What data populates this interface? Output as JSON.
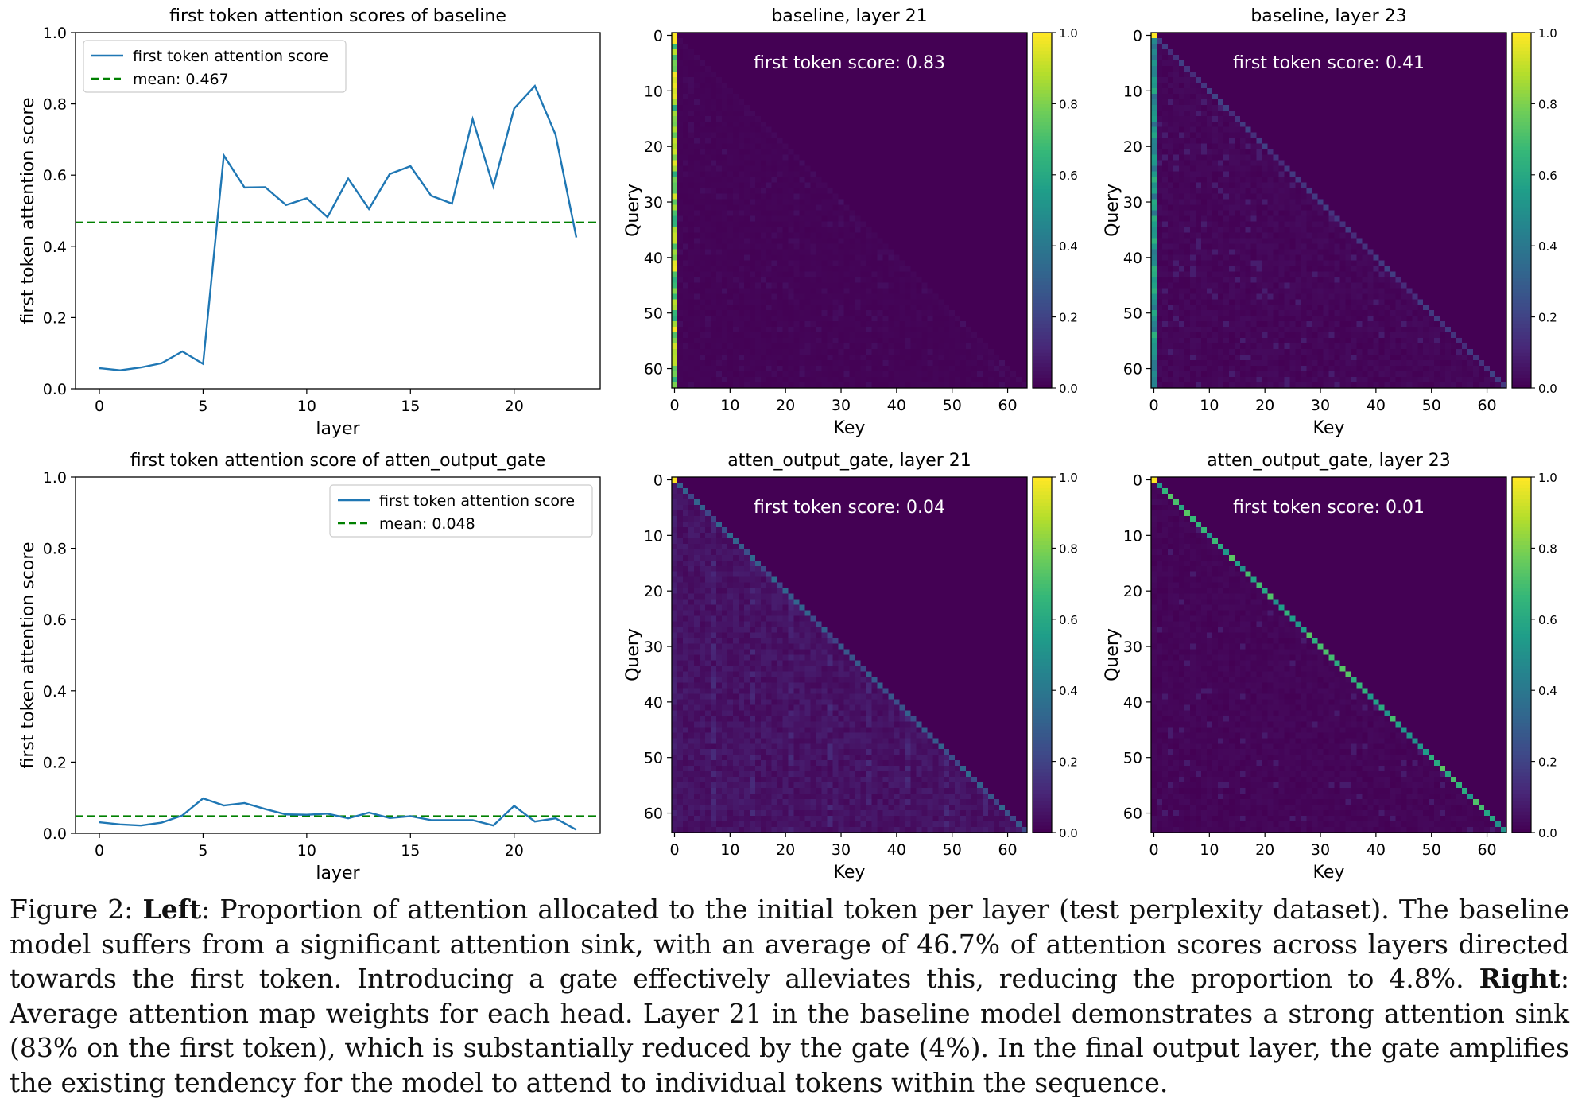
{
  "chart_data": [
    {
      "type": "line",
      "title": "first token attention scores of baseline",
      "xlabel": "layer",
      "ylabel": "first token attention score",
      "xlim": [
        -1.15,
        24.15
      ],
      "ylim": [
        0,
        1.0
      ],
      "xticks": [
        "0",
        "5",
        "10",
        "15",
        "20"
      ],
      "yticks": [
        "0.0",
        "0.2",
        "0.4",
        "0.6",
        "0.8",
        "1.0"
      ],
      "legend_position": "upper-left",
      "x": [
        0,
        1,
        2,
        3,
        4,
        5,
        6,
        7,
        8,
        9,
        10,
        11,
        12,
        13,
        14,
        15,
        16,
        17,
        18,
        19,
        20,
        21,
        22,
        23
      ],
      "series": [
        {
          "name": "first token attention score",
          "color": "#1f77b4",
          "values": [
            0.058,
            0.052,
            0.06,
            0.072,
            0.105,
            0.07,
            0.655,
            0.565,
            0.566,
            0.516,
            0.535,
            0.482,
            0.59,
            0.505,
            0.603,
            0.625,
            0.542,
            0.52,
            0.757,
            0.568,
            0.787,
            0.85,
            0.713,
            0.425
          ]
        },
        {
          "name": "mean: 0.467",
          "color": "#008000",
          "style": "dashed",
          "constant": 0.467
        }
      ]
    },
    {
      "type": "heatmap",
      "title": "baseline, layer 21",
      "xlabel": "Key",
      "ylabel": "Query",
      "annotation": "first token score: 0.83",
      "first_token_score": 0.83,
      "pattern": "strong sink on key 0",
      "xticks": [
        "0",
        "10",
        "20",
        "30",
        "40",
        "50",
        "60"
      ],
      "yticks": [
        "0",
        "10",
        "20",
        "30",
        "40",
        "50",
        "60"
      ],
      "colorbar_ticks": [
        "0.0",
        "0.2",
        "0.4",
        "0.6",
        "0.8",
        "1.0"
      ],
      "colormap": "viridis",
      "vmin": 0,
      "vmax": 1
    },
    {
      "type": "heatmap",
      "title": "baseline, layer 23",
      "xlabel": "Key",
      "ylabel": "Query",
      "annotation": "first token score: 0.41",
      "first_token_score": 0.41,
      "pattern": "moderate sink and faint diagonal",
      "xticks": [
        "0",
        "10",
        "20",
        "30",
        "40",
        "50",
        "60"
      ],
      "yticks": [
        "0",
        "10",
        "20",
        "30",
        "40",
        "50",
        "60"
      ],
      "colorbar_ticks": [
        "0.0",
        "0.2",
        "0.4",
        "0.6",
        "0.8",
        "1.0"
      ],
      "colormap": "viridis",
      "vmin": 0,
      "vmax": 1
    },
    {
      "type": "line",
      "title": "first token attention score of atten_output_gate",
      "xlabel": "layer",
      "ylabel": "first token attention score",
      "xlim": [
        -1.15,
        24.15
      ],
      "ylim": [
        0,
        1.0
      ],
      "xticks": [
        "0",
        "5",
        "10",
        "15",
        "20"
      ],
      "yticks": [
        "0.0",
        "0.2",
        "0.4",
        "0.6",
        "0.8",
        "1.0"
      ],
      "legend_position": "upper-right",
      "x": [
        0,
        1,
        2,
        3,
        4,
        5,
        6,
        7,
        8,
        9,
        10,
        11,
        12,
        13,
        14,
        15,
        16,
        17,
        18,
        19,
        20,
        21,
        22,
        23
      ],
      "series": [
        {
          "name": "first token attention score",
          "color": "#1f77b4",
          "values": [
            0.031,
            0.025,
            0.022,
            0.03,
            0.05,
            0.098,
            0.078,
            0.085,
            0.068,
            0.053,
            0.052,
            0.055,
            0.042,
            0.058,
            0.043,
            0.048,
            0.037,
            0.037,
            0.037,
            0.022,
            0.077,
            0.033,
            0.042,
            0.01
          ]
        },
        {
          "name": "mean: 0.048",
          "color": "#008000",
          "style": "dashed",
          "constant": 0.048
        }
      ]
    },
    {
      "type": "heatmap",
      "title": "atten_output_gate, layer 21",
      "xlabel": "Key",
      "ylabel": "Query",
      "annotation": "first token score: 0.04",
      "first_token_score": 0.04,
      "pattern": "diffuse lower triangle",
      "xticks": [
        "0",
        "10",
        "20",
        "30",
        "40",
        "50",
        "60"
      ],
      "yticks": [
        "0",
        "10",
        "20",
        "30",
        "40",
        "50",
        "60"
      ],
      "colorbar_ticks": [
        "0.0",
        "0.2",
        "0.4",
        "0.6",
        "0.8",
        "1.0"
      ],
      "colormap": "viridis",
      "vmin": 0,
      "vmax": 1
    },
    {
      "type": "heatmap",
      "title": "atten_output_gate, layer 23",
      "xlabel": "Key",
      "ylabel": "Query",
      "annotation": "first token score: 0.01",
      "first_token_score": 0.01,
      "pattern": "strong diagonal",
      "xticks": [
        "0",
        "10",
        "20",
        "30",
        "40",
        "50",
        "60"
      ],
      "yticks": [
        "0",
        "10",
        "20",
        "30",
        "40",
        "50",
        "60"
      ],
      "colorbar_ticks": [
        "0.0",
        "0.2",
        "0.4",
        "0.6",
        "0.8",
        "1.0"
      ],
      "colormap": "viridis",
      "vmin": 0,
      "vmax": 1
    }
  ],
  "caption": {
    "label": "Figure 2: ",
    "left_bold": "Left",
    "left_text": ": Proportion of attention allocated to the initial token per layer (test perplexity dataset). The baseline model suffers from a significant attention sink, with an average of 46.7% of attention scores across layers directed towards the first token. Introducing a gate effectively alleviates this, reducing the proportion to 4.8%. ",
    "right_bold": "Right",
    "right_text": ": Average attention map weights for each head. Layer 21 in the baseline model demonstrates a strong attention sink (83% on the first token), which is substantially reduced by the gate (4%). In the final output layer, the gate amplifies the existing tendency for the model to attend to individual tokens within the sequence."
  }
}
